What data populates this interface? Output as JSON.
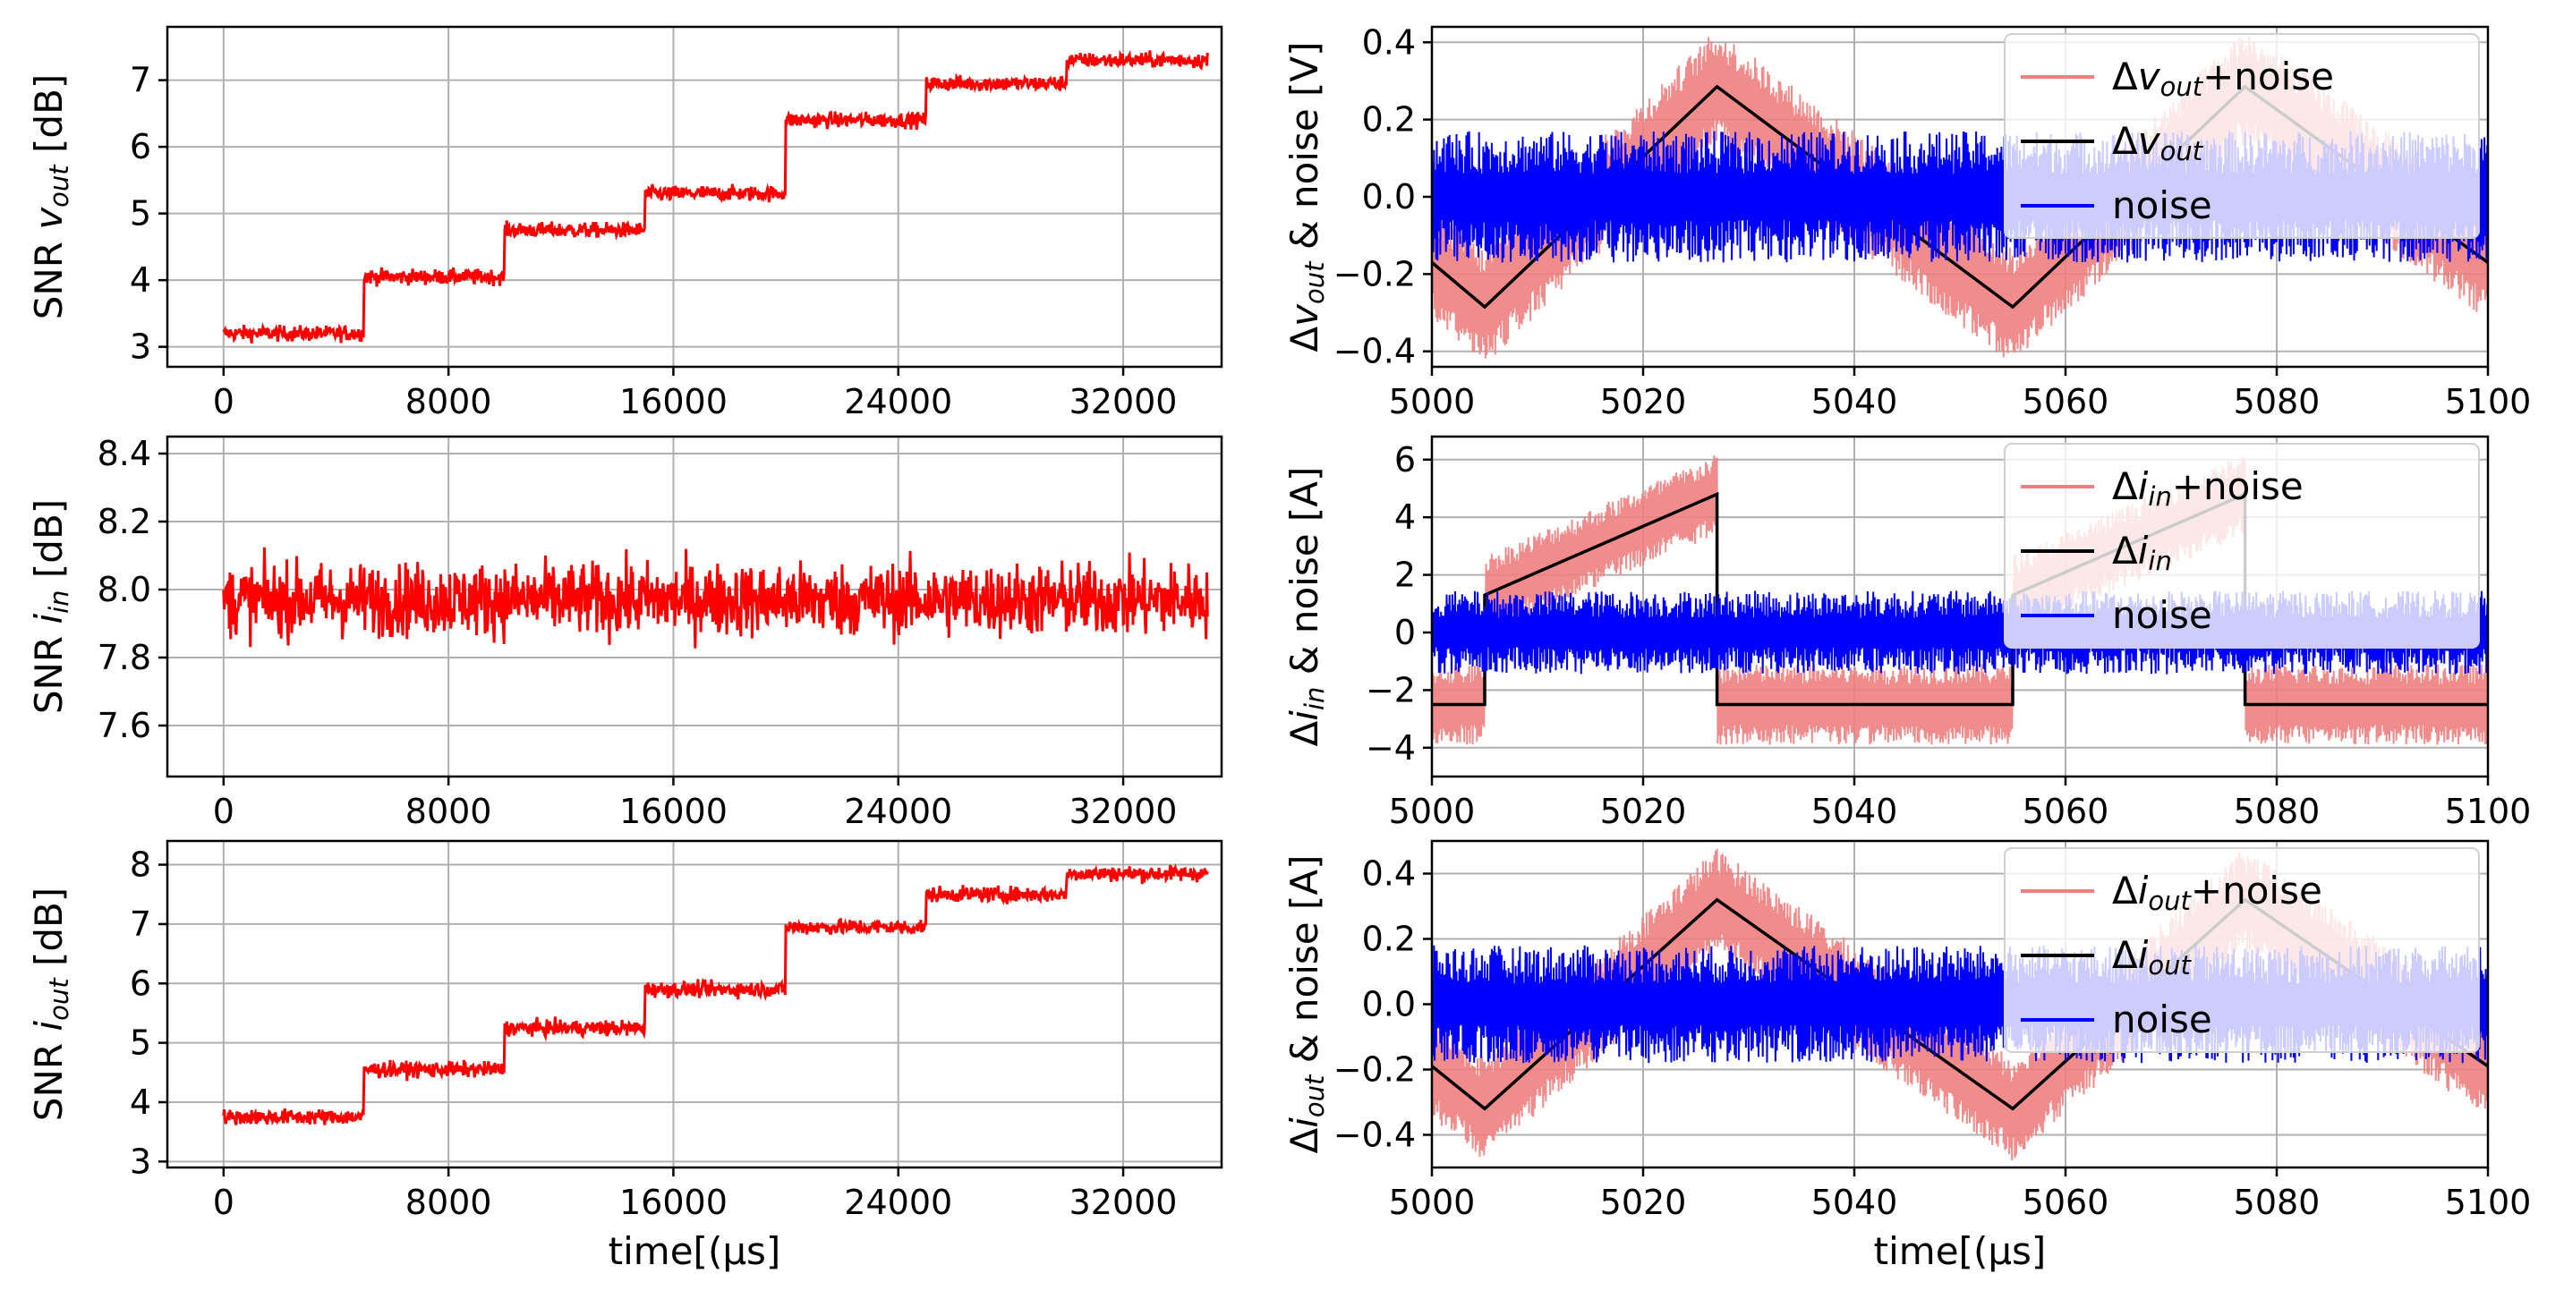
{
  "chart_data": [
    {
      "id": "snr_vout",
      "type": "line",
      "ylabel": "SNR v_out [dB]",
      "ylabel_parts": {
        "prefix": "SNR ",
        "var": "v",
        "sub": "out",
        "suffix": " [dB]"
      },
      "xlabel": "",
      "xlim": [
        -2000,
        35500
      ],
      "ylim": [
        2.7,
        7.8
      ],
      "xticks": [
        0,
        8000,
        16000,
        24000,
        32000
      ],
      "xtick_labels": [
        "0",
        "8000",
        "16000",
        "24000",
        "32000"
      ],
      "yticks": [
        3,
        4,
        5,
        6,
        7
      ],
      "ytick_labels": [
        "3",
        "4",
        "5",
        "6",
        "7"
      ],
      "grid": true,
      "series": [
        {
          "name": "SNR",
          "color": "#ff0000",
          "x_range": [
            0,
            35000
          ],
          "levels": [
            [
              0,
              3.2
            ],
            [
              5000,
              4.05
            ],
            [
              10000,
              4.75
            ],
            [
              15000,
              5.3
            ],
            [
              20000,
              6.4
            ],
            [
              25000,
              6.95
            ],
            [
              30000,
              7.3
            ]
          ],
          "noise_amp": 0.15
        }
      ]
    },
    {
      "id": "snr_iin",
      "type": "line",
      "ylabel": "SNR i_in [dB]",
      "ylabel_parts": {
        "prefix": "SNR ",
        "var": "i",
        "sub": "in",
        "suffix": " [dB]"
      },
      "xlabel": "",
      "xlim": [
        -2000,
        35500
      ],
      "ylim": [
        7.45,
        8.45
      ],
      "xticks": [
        0,
        8000,
        16000,
        24000,
        32000
      ],
      "xtick_labels": [
        "0",
        "8000",
        "16000",
        "24000",
        "32000"
      ],
      "yticks": [
        7.6,
        7.8,
        8.0,
        8.2,
        8.4
      ],
      "ytick_labels": [
        "7.6",
        "7.8",
        "8.0",
        "8.2",
        "8.4"
      ],
      "grid": true,
      "series": [
        {
          "name": "SNR",
          "color": "#ff0000",
          "x_range": [
            0,
            35000
          ],
          "levels": [
            [
              0,
              7.97
            ]
          ],
          "noise_amp": 0.14
        }
      ]
    },
    {
      "id": "snr_iout",
      "type": "line",
      "ylabel": "SNR i_out [dB]",
      "ylabel_parts": {
        "prefix": "SNR ",
        "var": "i",
        "sub": "out",
        "suffix": " [dB]"
      },
      "xlabel": "time[(μs]",
      "xlim": [
        -2000,
        35500
      ],
      "ylim": [
        2.9,
        8.4
      ],
      "xticks": [
        0,
        8000,
        16000,
        24000,
        32000
      ],
      "xtick_labels": [
        "0",
        "8000",
        "16000",
        "24000",
        "32000"
      ],
      "yticks": [
        3,
        4,
        5,
        6,
        7,
        8
      ],
      "ytick_labels": [
        "3",
        "4",
        "5",
        "6",
        "7",
        "8"
      ],
      "grid": true,
      "series": [
        {
          "name": "SNR",
          "color": "#ff0000",
          "x_range": [
            0,
            35000
          ],
          "levels": [
            [
              0,
              3.75
            ],
            [
              5000,
              4.55
            ],
            [
              10000,
              5.25
            ],
            [
              15000,
              5.9
            ],
            [
              20000,
              6.95
            ],
            [
              25000,
              7.5
            ],
            [
              30000,
              7.85
            ]
          ],
          "noise_amp": 0.17
        }
      ]
    },
    {
      "id": "dvout",
      "type": "line",
      "ylabel": "Δv_out & noise [V]",
      "ylabel_parts": {
        "prefix": "Δ",
        "var": "v",
        "sub": "out",
        "suffix": " & noise [V]"
      },
      "xlabel": "",
      "xlim": [
        5000,
        5100
      ],
      "ylim": [
        -0.44,
        0.44
      ],
      "xticks": [
        5000,
        5020,
        5040,
        5060,
        5080,
        5100
      ],
      "xtick_labels": [
        "5000",
        "5020",
        "5040",
        "5060",
        "5080",
        "5100"
      ],
      "yticks": [
        -0.4,
        -0.2,
        0.0,
        0.2,
        0.4
      ],
      "ytick_labels": [
        "−0.4",
        "−0.2",
        "0.0",
        "0.2",
        "0.4"
      ],
      "grid": true,
      "legend_loc": "upper-right",
      "series": [
        {
          "name": "Δv_out+noise",
          "legend_parts": {
            "prefix": "Δ",
            "var": "v",
            "sub": "out",
            "suffix": "+noise"
          },
          "color": "#f08080",
          "role": "signal_plus_noise",
          "noise_amp": 0.15
        },
        {
          "name": "Δv_out",
          "legend_parts": {
            "prefix": "Δ",
            "var": "v",
            "sub": "out",
            "suffix": ""
          },
          "color": "#000000",
          "role": "signal",
          "x": [
            5000,
            5005,
            5027,
            5055,
            5077,
            5100
          ],
          "y": [
            -0.17,
            -0.285,
            0.285,
            -0.285,
            0.285,
            -0.17
          ]
        },
        {
          "name": "noise",
          "legend_parts": {
            "prefix": "",
            "var": "",
            "sub": "",
            "suffix": "noise"
          },
          "color": "#0000ff",
          "role": "noise",
          "noise_amp": 0.17
        }
      ]
    },
    {
      "id": "diin",
      "type": "line",
      "ylabel": "Δi_in & noise [A]",
      "ylabel_parts": {
        "prefix": "Δ",
        "var": "i",
        "sub": "in",
        "suffix": " & noise [A]"
      },
      "xlabel": "",
      "xlim": [
        5000,
        5100
      ],
      "ylim": [
        -5,
        6.8
      ],
      "xticks": [
        5000,
        5020,
        5040,
        5060,
        5080,
        5100
      ],
      "xtick_labels": [
        "5000",
        "5020",
        "5040",
        "5060",
        "5080",
        "5100"
      ],
      "yticks": [
        -4,
        -2,
        0,
        2,
        4,
        6
      ],
      "ytick_labels": [
        "−4",
        "−2",
        "0",
        "2",
        "4",
        "6"
      ],
      "grid": true,
      "legend_loc": "upper-right",
      "series": [
        {
          "name": "Δi_in+noise",
          "legend_parts": {
            "prefix": "Δ",
            "var": "i",
            "sub": "in",
            "suffix": "+noise"
          },
          "color": "#f08080",
          "role": "signal_plus_noise",
          "noise_amp": 1.4
        },
        {
          "name": "Δi_in",
          "legend_parts": {
            "prefix": "Δ",
            "var": "i",
            "sub": "in",
            "suffix": ""
          },
          "color": "#000000",
          "role": "signal",
          "x": [
            5000,
            5005,
            5005,
            5027,
            5027,
            5055,
            5055,
            5077,
            5077,
            5100
          ],
          "y": [
            -2.5,
            -2.5,
            1.3,
            4.8,
            -2.5,
            -2.5,
            1.3,
            4.8,
            -2.5,
            -2.5
          ]
        },
        {
          "name": "noise",
          "legend_parts": {
            "prefix": "",
            "var": "",
            "sub": "",
            "suffix": "noise"
          },
          "color": "#0000ff",
          "role": "noise",
          "noise_amp": 1.45
        }
      ]
    },
    {
      "id": "diout",
      "type": "line",
      "ylabel": "Δi_out & noise [A]",
      "ylabel_parts": {
        "prefix": "Δ",
        "var": "i",
        "sub": "out",
        "suffix": " & noise [A]"
      },
      "xlabel": "time[(μs]",
      "xlim": [
        5000,
        5100
      ],
      "ylim": [
        -0.5,
        0.5
      ],
      "xticks": [
        5000,
        5020,
        5040,
        5060,
        5080,
        5100
      ],
      "xtick_labels": [
        "5000",
        "5020",
        "5040",
        "5060",
        "5080",
        "5100"
      ],
      "yticks": [
        -0.4,
        -0.2,
        0.0,
        0.2,
        0.4
      ],
      "ytick_labels": [
        "−0.4",
        "−0.2",
        "0.0",
        "0.2",
        "0.4"
      ],
      "grid": true,
      "legend_loc": "upper-right",
      "series": [
        {
          "name": "Δi_out+noise",
          "legend_parts": {
            "prefix": "Δ",
            "var": "i",
            "sub": "out",
            "suffix": "+noise"
          },
          "color": "#f08080",
          "role": "signal_plus_noise",
          "noise_amp": 0.16
        },
        {
          "name": "Δi_out",
          "legend_parts": {
            "prefix": "Δ",
            "var": "i",
            "sub": "out",
            "suffix": ""
          },
          "color": "#000000",
          "role": "signal",
          "x": [
            5000,
            5005,
            5027,
            5055,
            5077,
            5100
          ],
          "y": [
            -0.19,
            -0.32,
            0.32,
            -0.32,
            0.32,
            -0.19
          ]
        },
        {
          "name": "noise",
          "legend_parts": {
            "prefix": "",
            "var": "",
            "sub": "",
            "suffix": "noise"
          },
          "color": "#0000ff",
          "role": "noise",
          "noise_amp": 0.18
        }
      ]
    }
  ]
}
